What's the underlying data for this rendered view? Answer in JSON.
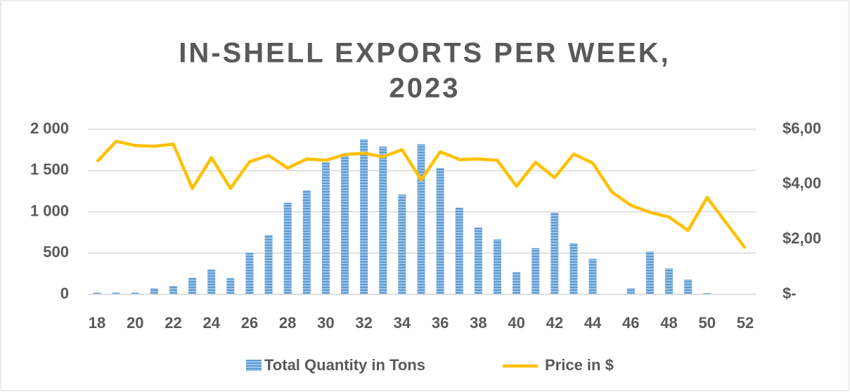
{
  "chart_data": {
    "type": "bar-line",
    "title": [
      "IN-SHELL EXPORTS PER WEEK,",
      "2023"
    ],
    "categories": [
      "18",
      null,
      "20",
      null,
      "22",
      null,
      "24",
      null,
      "26",
      null,
      "28",
      null,
      "30",
      null,
      "32",
      null,
      "34",
      null,
      "36",
      null,
      "38",
      null,
      "40",
      null,
      "42",
      null,
      "44",
      null,
      "46",
      null,
      "48",
      null,
      "50",
      null,
      "52"
    ],
    "series": [
      {
        "name": "Total Quantity in Tons",
        "type": "bar",
        "color": "#5b9bd5",
        "values": [
          20,
          20,
          20,
          75,
          100,
          200,
          300,
          195,
          505,
          720,
          1110,
          1260,
          1600,
          1680,
          1880,
          1790,
          1210,
          1820,
          1530,
          1050,
          810,
          665,
          270,
          560,
          990,
          620,
          430,
          0,
          75,
          520,
          315,
          180,
          15,
          0,
          0
        ]
      },
      {
        "name": "Price in $",
        "type": "line",
        "axis": "y2",
        "color": "#ffc000",
        "values": [
          4.82,
          5.56,
          5.41,
          5.38,
          5.46,
          3.85,
          4.97,
          3.85,
          4.82,
          5.05,
          4.59,
          4.92,
          4.87,
          5.08,
          5.13,
          5.0,
          5.26,
          4.16,
          5.18,
          4.9,
          4.92,
          4.87,
          3.93,
          4.8,
          4.24,
          5.1,
          4.77,
          3.72,
          3.24,
          2.98,
          2.81,
          2.32,
          3.52,
          2.6,
          1.68
        ]
      }
    ],
    "ylim": [
      0,
      2000
    ],
    "yticks": [
      0,
      500,
      {
        "value": 1000,
        "label": "1 000"
      },
      {
        "value": 1500,
        "label": "1 500"
      },
      {
        "value": 2000,
        "label": "2 000"
      }
    ],
    "y2lim": [
      0,
      6
    ],
    "y2ticks": [
      {
        "value": 0,
        "label": "$-"
      },
      {
        "value": 2,
        "label": "$2,00"
      },
      {
        "value": 4,
        "label": "$4,00"
      },
      {
        "value": 6,
        "label": "$6,00"
      }
    ],
    "grid": true,
    "legend": "bottom"
  }
}
